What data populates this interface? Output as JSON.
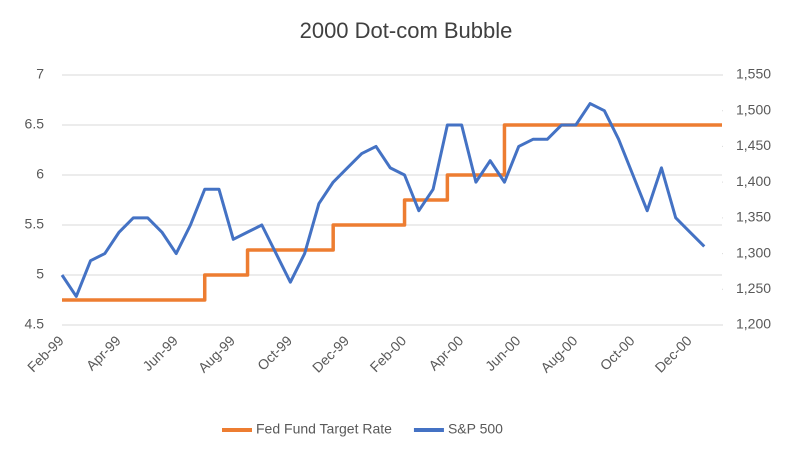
{
  "chart_data": {
    "type": "line",
    "title": "2000 Dot-com Bubble",
    "categories": [
      "Feb-99",
      null,
      null,
      null,
      "Apr-99",
      null,
      null,
      null,
      "Jun-99",
      null,
      null,
      null,
      "Aug-99",
      null,
      null,
      null,
      "Oct-99",
      null,
      null,
      null,
      "Dec-99",
      null,
      null,
      null,
      "Feb-00",
      null,
      null,
      null,
      "Apr-00",
      null,
      null,
      null,
      "Jun-00",
      null,
      null,
      null,
      "Aug-00",
      null,
      null,
      null,
      "Oct-00",
      null,
      null,
      null,
      "Dec-00",
      null
    ],
    "series": [
      {
        "name": "Fed Fund Target Rate",
        "color": "#ed7d31",
        "axis": "y",
        "step": "after",
        "values": [
          4.75,
          4.75,
          4.75,
          4.75,
          4.75,
          4.75,
          4.75,
          4.75,
          4.75,
          4.75,
          5,
          5,
          5,
          5.25,
          5.25,
          5.25,
          5.25,
          5.25,
          5.25,
          5.5,
          5.5,
          5.5,
          5.5,
          5.5,
          5.75,
          5.75,
          5.75,
          6,
          6,
          6,
          6,
          6.5,
          6.5,
          6.5,
          6.5,
          6.5,
          6.5,
          6.5,
          6.5,
          6.5,
          6.5,
          6.5,
          6.5,
          6.5,
          6.5,
          6.5
        ]
      },
      {
        "name": "S&P 500",
        "color": "#4472c4",
        "axis": "y2",
        "values": [
          1270,
          1240,
          1290,
          1300,
          1330,
          1350,
          1350,
          1330,
          1300,
          1340,
          1390,
          1390,
          1320,
          1330,
          1340,
          1300,
          1260,
          1300,
          1370,
          1400,
          1420,
          1440,
          1450,
          1420,
          1410,
          1360,
          1390,
          1480,
          1480,
          1400,
          1430,
          1400,
          1450,
          1460,
          1460,
          1480,
          1480,
          1510,
          1500,
          1460,
          1410,
          1360,
          1420,
          1350,
          1330,
          1310
        ]
      }
    ],
    "ylim": [
      4.5,
      7
    ],
    "yticks": [
      4.5,
      5,
      5.5,
      6,
      6.5,
      7
    ],
    "y2lim": [
      1200,
      1550
    ],
    "y2ticks": [
      {
        "value": 1200,
        "label": "1,200"
      },
      {
        "value": 1250,
        "label": "1,250"
      },
      {
        "value": 1300,
        "label": "1,300"
      },
      {
        "value": 1350,
        "label": "1,350"
      },
      {
        "value": 1400,
        "label": "1,400"
      },
      {
        "value": 1450,
        "label": "1,450"
      },
      {
        "value": 1500,
        "label": "1,500"
      },
      {
        "value": 1550,
        "label": "1,550"
      }
    ],
    "grid": true,
    "legend": "bottom"
  }
}
